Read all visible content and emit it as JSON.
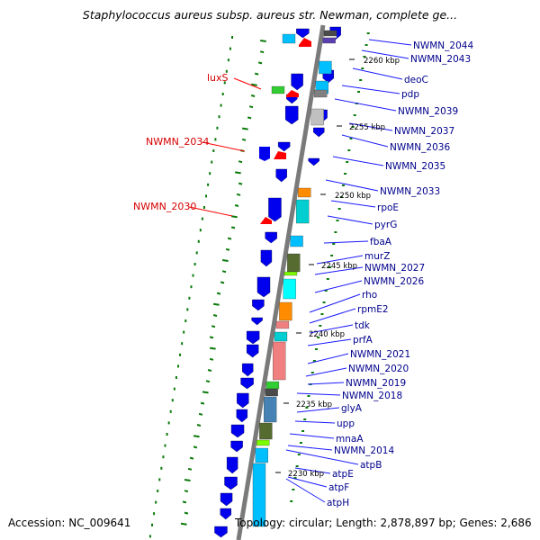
{
  "title": "Staphylococcus aureus subsp. aureus str. Newman, complete ge...",
  "accession": "Accession: NC_009641",
  "topology": "Topology: circular; Length: 2,878,897 bp; Genes: 2,686",
  "kbp_labels": [
    "2260 kbp",
    "2255 kbp",
    "2250 kbp",
    "2245 kbp",
    "2240 kbp",
    "2235 kbp",
    "2230 kbp"
  ],
  "left_labels": [
    "luxS",
    "NWMN_2034",
    "NWMN_2030"
  ],
  "right_labels": [
    "NWMN_2044",
    "NWMN_2043",
    "deoC",
    "pdp",
    "NWMN_2039",
    "NWMN_2037",
    "NWMN_2036",
    "NWMN_2035",
    "NWMN_2033",
    "rpoE",
    "pyrG",
    "fbaA",
    "murZ",
    "NWMN_2027",
    "NWMN_2026",
    "rho",
    "rpmE2",
    "tdk",
    "prfA",
    "NWMN_2021",
    "NWMN_2020",
    "NWMN_2019",
    "NWMN_2018",
    "glyA",
    "upp",
    "mnaA",
    "NWMN_2014",
    "atpB",
    "atpE",
    "atpF",
    "atpH"
  ],
  "colors": {
    "gene_label": "#00008b",
    "rna_label": "#d40000",
    "backbone": "#808080",
    "cds": "#0000ff",
    "rrna": "#ff0000",
    "gc_tick": "#0a7a0a"
  }
}
